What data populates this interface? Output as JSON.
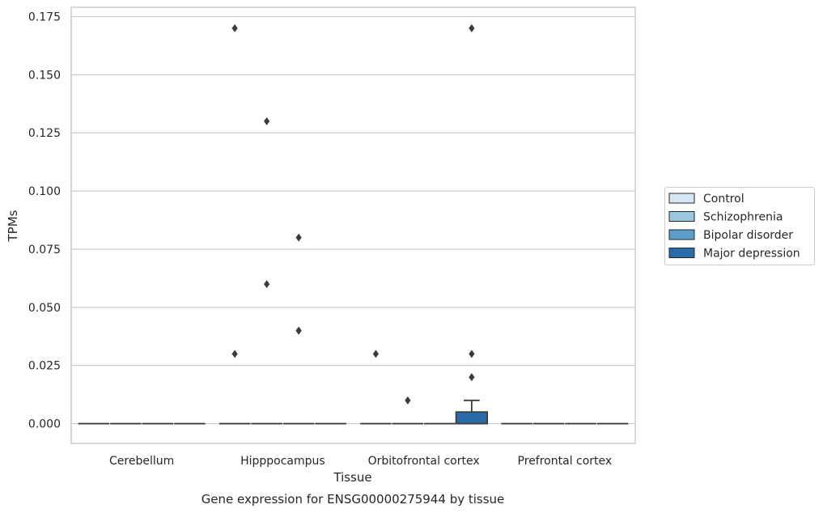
{
  "chart_data": {
    "type": "box",
    "title": "",
    "caption": "Gene expression for ENSG00000275944 by tissue",
    "xlabel": "Tissue",
    "ylabel": "TPMs",
    "categories": [
      "Cerebellum",
      "Hipppocampus",
      "Orbitofrontal cortex",
      "Prefrontal cortex"
    ],
    "ylim": [
      -0.0085,
      0.179
    ],
    "yticks": [
      "0.000",
      "0.025",
      "0.050",
      "0.075",
      "0.100",
      "0.125",
      "0.150",
      "0.175"
    ],
    "ytick_values": [
      0,
      0.025,
      0.05,
      0.075,
      0.1,
      0.125,
      0.15,
      0.175
    ],
    "grid": true,
    "legend": {
      "placement": "right"
    },
    "series": [
      {
        "name": "Control",
        "color": "#d6e5f3",
        "boxes": [
          {
            "category": "Cerebellum",
            "q1": 0,
            "median": 0,
            "q3": 0,
            "whisker_low": 0,
            "whisker_high": 0,
            "outliers": []
          },
          {
            "category": "Hipppocampus",
            "q1": 0,
            "median": 0,
            "q3": 0,
            "whisker_low": 0,
            "whisker_high": 0,
            "outliers": [
              0.03,
              0.17
            ]
          },
          {
            "category": "Orbitofrontal cortex",
            "q1": 0,
            "median": 0,
            "q3": 0,
            "whisker_low": 0,
            "whisker_high": 0,
            "outliers": [
              0.03
            ]
          },
          {
            "category": "Prefrontal cortex",
            "q1": 0,
            "median": 0,
            "q3": 0,
            "whisker_low": 0,
            "whisker_high": 0,
            "outliers": []
          }
        ]
      },
      {
        "name": "Schizophrenia",
        "color": "#9ac6df",
        "boxes": [
          {
            "category": "Cerebellum",
            "q1": 0,
            "median": 0,
            "q3": 0,
            "whisker_low": 0,
            "whisker_high": 0,
            "outliers": []
          },
          {
            "category": "Hipppocampus",
            "q1": 0,
            "median": 0,
            "q3": 0,
            "whisker_low": 0,
            "whisker_high": 0,
            "outliers": [
              0.06,
              0.13
            ]
          },
          {
            "category": "Orbitofrontal cortex",
            "q1": 0,
            "median": 0,
            "q3": 0,
            "whisker_low": 0,
            "whisker_high": 0,
            "outliers": [
              0.01
            ]
          },
          {
            "category": "Prefrontal cortex",
            "q1": 0,
            "median": 0,
            "q3": 0,
            "whisker_low": 0,
            "whisker_high": 0,
            "outliers": []
          }
        ]
      },
      {
        "name": "Bipolar disorder",
        "color": "#5a9ec9",
        "boxes": [
          {
            "category": "Cerebellum",
            "q1": 0,
            "median": 0,
            "q3": 0,
            "whisker_low": 0,
            "whisker_high": 0,
            "outliers": []
          },
          {
            "category": "Hipppocampus",
            "q1": 0,
            "median": 0,
            "q3": 0,
            "whisker_low": 0,
            "whisker_high": 0,
            "outliers": [
              0.04,
              0.04,
              0.08
            ]
          },
          {
            "category": "Orbitofrontal cortex",
            "q1": 0,
            "median": 0,
            "q3": 0,
            "whisker_low": 0,
            "whisker_high": 0,
            "outliers": []
          },
          {
            "category": "Prefrontal cortex",
            "q1": 0,
            "median": 0,
            "q3": 0,
            "whisker_low": 0,
            "whisker_high": 0,
            "outliers": []
          }
        ]
      },
      {
        "name": "Major depression",
        "color": "#2a6aa8",
        "boxes": [
          {
            "category": "Cerebellum",
            "q1": 0,
            "median": 0,
            "q3": 0,
            "whisker_low": 0,
            "whisker_high": 0,
            "outliers": []
          },
          {
            "category": "Hipppocampus",
            "q1": 0,
            "median": 0,
            "q3": 0,
            "whisker_low": 0,
            "whisker_high": 0,
            "outliers": []
          },
          {
            "category": "Orbitofrontal cortex",
            "q1": 0,
            "median": 0,
            "q3": 0.005,
            "whisker_low": 0,
            "whisker_high": 0.01,
            "outliers": [
              0.02,
              0.03,
              0.17
            ]
          },
          {
            "category": "Prefrontal cortex",
            "q1": 0,
            "median": 0,
            "q3": 0,
            "whisker_low": 0,
            "whisker_high": 0,
            "outliers": []
          }
        ]
      }
    ],
    "colors": {
      "grid": "#cccccc",
      "frame": "#cccccc",
      "line": "#3c3c3c",
      "marker": "#3c3c3c"
    }
  }
}
